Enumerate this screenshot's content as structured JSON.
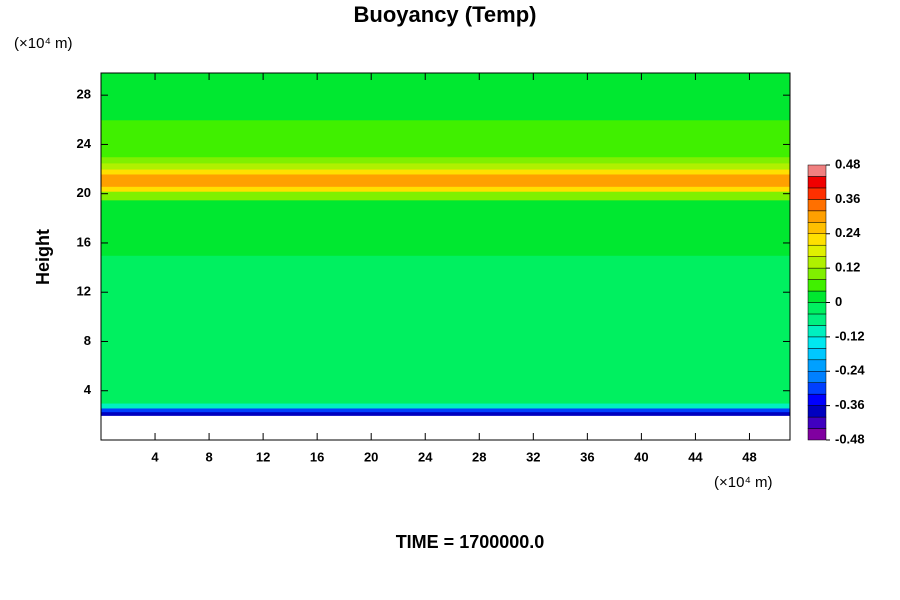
{
  "chart_data": {
    "type": "band-contour",
    "title": "Buoyancy (Temp)",
    "ylabel": "Height",
    "yunit": "(×10⁴ m)",
    "xunit": "(×10⁴ m)",
    "footer": "TIME = 1700000.0",
    "xlim": [
      0,
      51
    ],
    "ylim": [
      0,
      29.8
    ],
    "xticks": [
      4,
      8,
      12,
      16,
      20,
      24,
      28,
      32,
      36,
      40,
      44,
      48
    ],
    "yticks": [
      4,
      8,
      12,
      16,
      20,
      24,
      28
    ],
    "y_edges": [
      2,
      2.3,
      2.6,
      3,
      10.8,
      15,
      17,
      19.5,
      20.2,
      20.6,
      21.6,
      22,
      22.5,
      23,
      24,
      26,
      29.8
    ],
    "values": [
      -0.4,
      -0.3,
      -0.12,
      -0.04,
      -0.02,
      0,
      0.02,
      0.08,
      0.2,
      0.28,
      0.2,
      0.12,
      0.08,
      0.06,
      0.04,
      0.02
    ],
    "levels": [
      -0.48,
      -0.44,
      -0.4,
      -0.36,
      -0.32,
      -0.28,
      -0.24,
      -0.2,
      -0.16,
      -0.12,
      -0.08,
      -0.04,
      0,
      0.04,
      0.08,
      0.12,
      0.16,
      0.2,
      0.24,
      0.28,
      0.32,
      0.36,
      0.4,
      0.44,
      0.48
    ],
    "colors": [
      "#8000a0",
      "#4000c0",
      "#0000c0",
      "#0000ff",
      "#0040ff",
      "#0080ff",
      "#00a0ff",
      "#00c8ff",
      "#00e8f0",
      "#00f0c0",
      "#00f080",
      "#00f060",
      "#00e830",
      "#40f000",
      "#80f000",
      "#b0f000",
      "#e0f000",
      "#ffe000",
      "#ffc000",
      "#ffa000",
      "#ff7000",
      "#ff3000",
      "#f00000",
      "#f08080"
    ],
    "cticks": [
      -0.48,
      -0.36,
      -0.24,
      -0.12,
      0,
      0.12,
      0.24,
      0.36,
      0.48
    ]
  }
}
